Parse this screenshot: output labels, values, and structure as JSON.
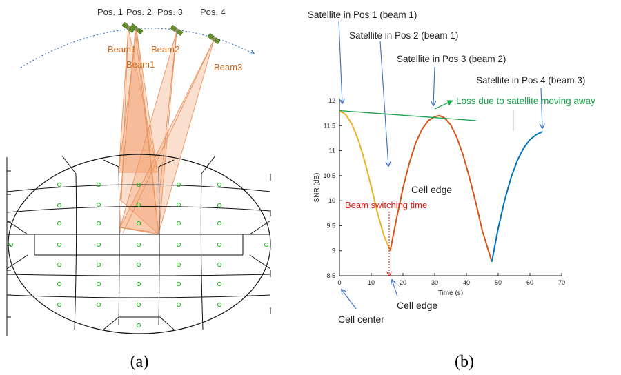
{
  "panel_a": {
    "positions": [
      "Pos. 1",
      "Pos. 2",
      "Pos. 3",
      "Pos. 4"
    ],
    "beams": [
      "Beam1",
      "Beam1",
      "Beam2",
      "Beam3"
    ],
    "caption": "(a)",
    "colors": {
      "beam": "#d2691e",
      "beam_fill": "#f4a374",
      "cell_dot": "#22bb22",
      "orbit": "#2e6fc6",
      "satellite": "#6a9a2c"
    }
  },
  "panel_b": {
    "caption": "(b)",
    "annotations": {
      "sat_pos1": "Satellite in Pos 1 (beam 1)",
      "sat_pos2": "Satellite in Pos 2 (beam 1)",
      "sat_pos3": "Satellite in Pos 3 (beam 2)",
      "sat_pos4": "Satellite in Pos 4 (beam 3)",
      "loss": "Loss due to satellite moving away",
      "cell_edge_mid": "Cell edge",
      "beam_switch": "Beam switching time",
      "cell_edge_bottom": "Cell edge",
      "cell_center": "Cell center"
    },
    "annotation_colors": {
      "arrow": "#3a6ec0",
      "loss": "#16a34a",
      "switch": "#e8150e"
    }
  },
  "chart_data": {
    "type": "line",
    "title": "",
    "xlabel": "Time (s)",
    "ylabel": "SNR (dB)",
    "xlim": [
      0,
      70
    ],
    "ylim": [
      8.5,
      12
    ],
    "xticks": [
      "0",
      "10",
      "20",
      "30",
      "40",
      "50",
      "60",
      "70"
    ],
    "yticks": [
      "8.5",
      "9",
      "9.5",
      "10",
      "10.5",
      "11",
      "11.5",
      "12"
    ],
    "grid": false,
    "series": [
      {
        "color": "#edb120",
        "x": [
          0,
          2,
          4,
          6,
          8,
          10,
          12,
          14,
          16
        ],
        "y": [
          11.8,
          11.72,
          11.52,
          11.2,
          10.78,
          10.28,
          9.75,
          9.3,
          9.0
        ]
      },
      {
        "color": "#d95319",
        "x": [
          16,
          18,
          20,
          22,
          24,
          26,
          28,
          30,
          31.5,
          33,
          35,
          37,
          39,
          41,
          43,
          45,
          48
        ],
        "y": [
          9.0,
          9.65,
          10.25,
          10.75,
          11.15,
          11.43,
          11.6,
          11.68,
          11.7,
          11.66,
          11.52,
          11.26,
          10.9,
          10.45,
          9.95,
          9.4,
          8.78
        ]
      },
      {
        "color": "#0072bd",
        "x": [
          48,
          50,
          52,
          54,
          56,
          58,
          60,
          62,
          64
        ],
        "y": [
          8.78,
          9.45,
          10.0,
          10.45,
          10.8,
          11.05,
          11.22,
          11.32,
          11.38
        ]
      },
      {
        "color": "#16a34a",
        "x": [
          0,
          43
        ],
        "y": [
          11.8,
          11.6
        ]
      }
    ]
  }
}
